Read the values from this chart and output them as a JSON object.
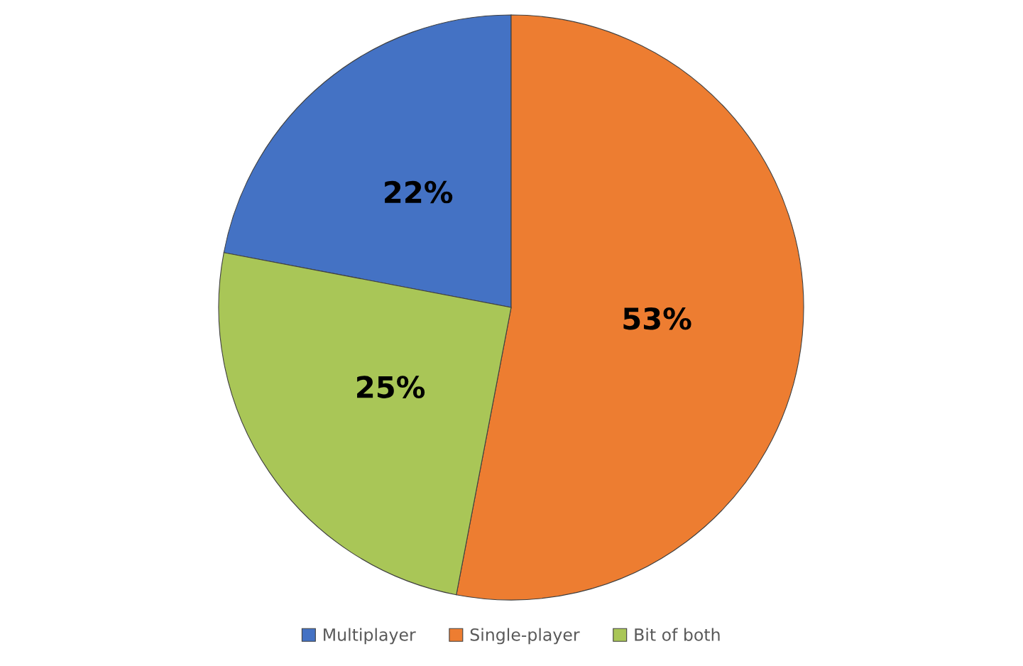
{
  "chart_data": {
    "type": "pie",
    "categories": [
      "Multiplayer",
      "Single-player",
      "Bit of both"
    ],
    "values": [
      22,
      53,
      25
    ],
    "colors": [
      "#4472c4",
      "#ed7d31",
      "#a9c657"
    ],
    "value_labels": [
      "22%",
      "53%",
      "25%"
    ],
    "legend": "bottom"
  }
}
